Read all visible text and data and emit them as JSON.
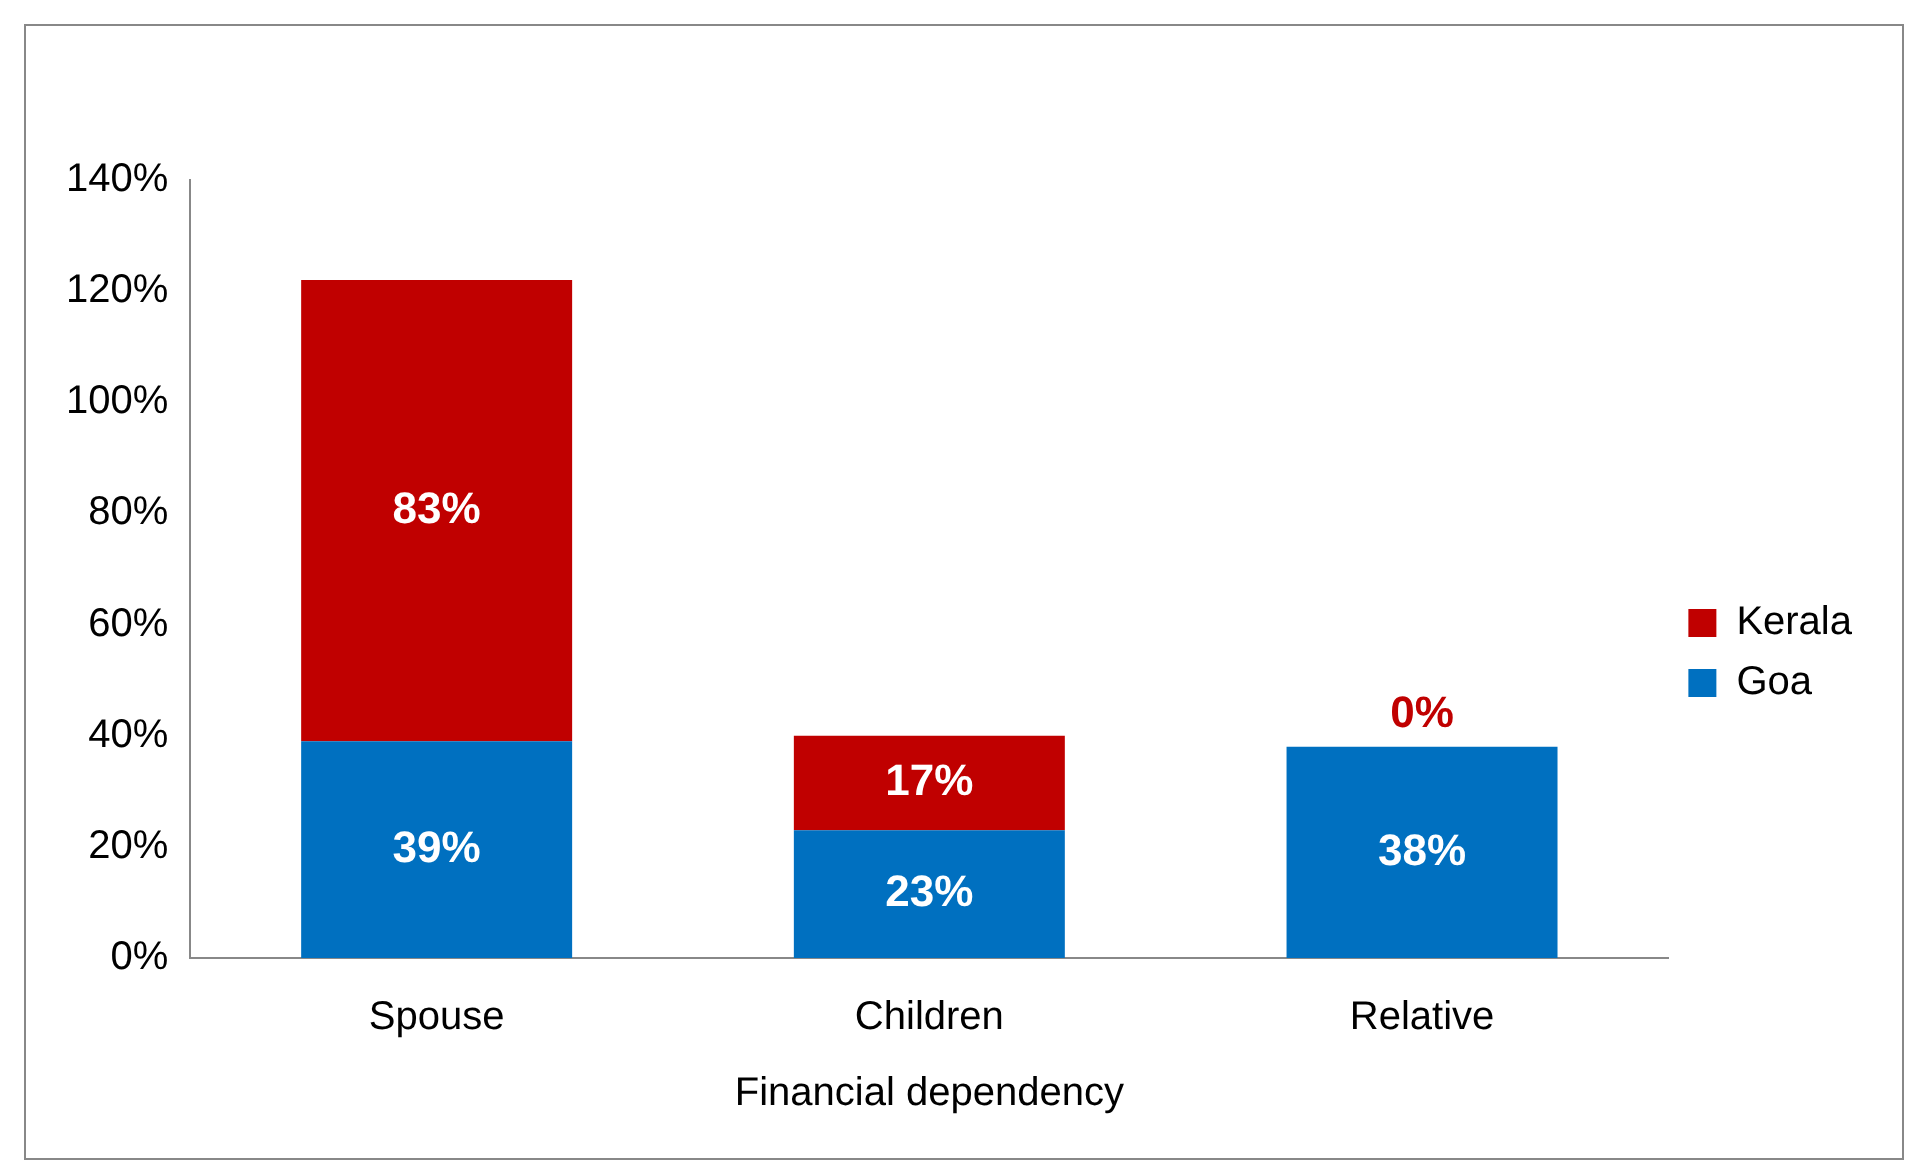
{
  "chart_data": {
    "type": "bar",
    "stacked": true,
    "xlabel": "Financial dependency",
    "categories": [
      "Spouse",
      "Children",
      "Relative"
    ],
    "series": [
      {
        "name": "Goa",
        "color": "#0070c0",
        "values": [
          39,
          23,
          38
        ],
        "value_labels": [
          "39%",
          "23%",
          "38%"
        ]
      },
      {
        "name": "Kerala",
        "color": "#c00000",
        "values": [
          83,
          17,
          0
        ],
        "value_labels": [
          "83%",
          "17%",
          "0%"
        ]
      }
    ],
    "ylim": [
      0,
      140
    ],
    "yticks": [
      {
        "value": 0,
        "label": "0%"
      },
      {
        "value": 20,
        "label": "20%"
      },
      {
        "value": 40,
        "label": "40%"
      },
      {
        "value": 60,
        "label": "60%"
      },
      {
        "value": 80,
        "label": "80%"
      },
      {
        "value": 100,
        "label": "100%"
      },
      {
        "value": 120,
        "label": "120%"
      },
      {
        "value": 140,
        "label": "140%"
      }
    ],
    "grid": false,
    "legend": "right"
  }
}
